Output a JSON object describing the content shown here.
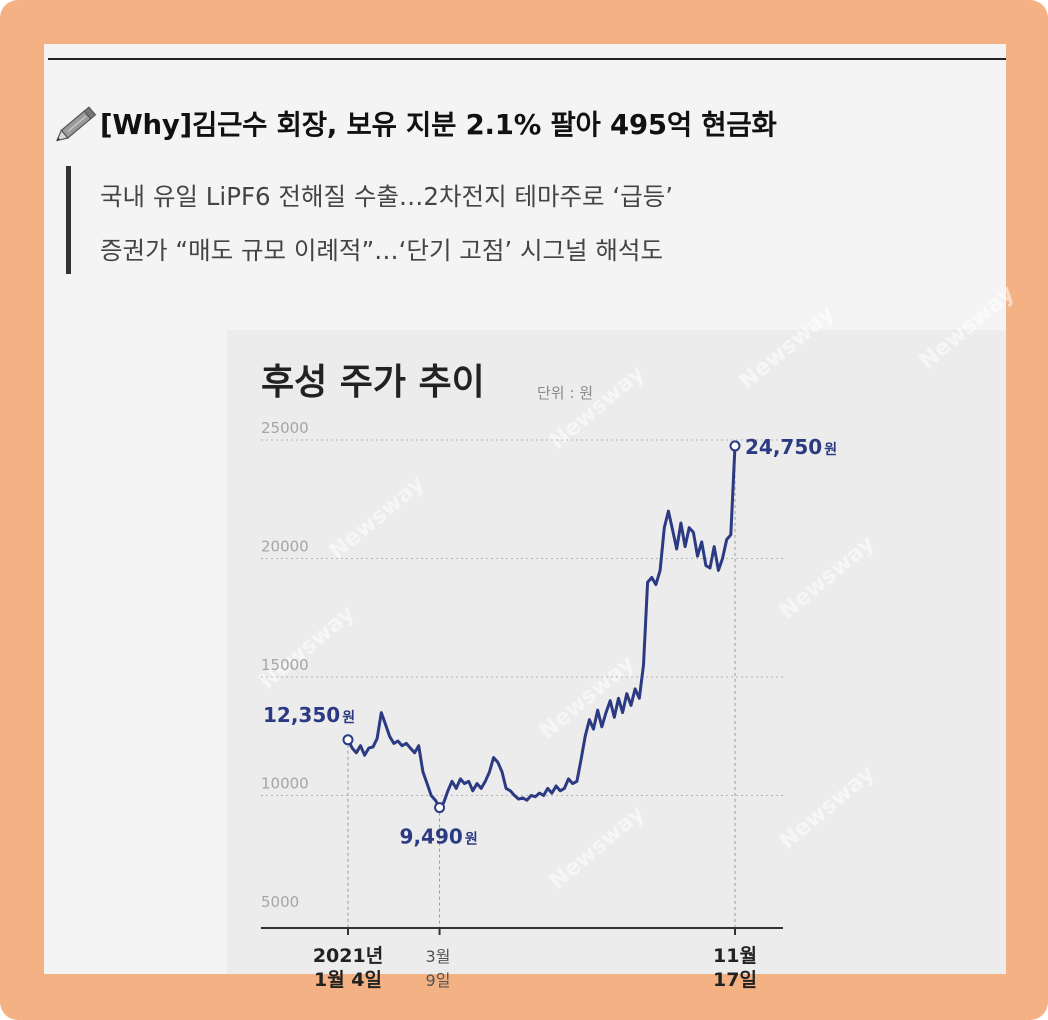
{
  "article": {
    "headline": "[Why]김근수 회장, 보유 지분 2.1% 팔아 495억 현금화",
    "subheads": [
      "국내 유일 LiPF6 전해질 수출…2차전지 테마주로 ‘급등’",
      "증권가 “매도 규모 이례적”…‘단기 고점’ 시그널 해석도"
    ],
    "icon": "pencil-icon"
  },
  "chart_data": {
    "type": "line",
    "title": "후성 주가 추이",
    "unit_label": "단위 : 원",
    "ylim": [
      5000,
      25000
    ],
    "yticks": [
      5000,
      10000,
      15000,
      20000,
      25000
    ],
    "ytick_labels": [
      "5000",
      "10000",
      "15000",
      "20000",
      "25000"
    ],
    "watermark": "Newsway",
    "color": "#2b3a82",
    "series": [
      {
        "values": [
          12350,
          12000,
          11800,
          12100,
          11700,
          12000,
          12050,
          12400,
          13500,
          13000,
          12500,
          12200,
          12300,
          12100,
          12200,
          12000,
          11800,
          12100,
          11000,
          10500,
          10000,
          9800,
          9490,
          9700,
          10200,
          10600,
          10300,
          10700,
          10500,
          10600,
          10200,
          10500,
          10300,
          10600,
          11000,
          11600,
          11400,
          11000,
          10300,
          10200,
          10000,
          9850,
          9900,
          9800,
          10000,
          9950,
          10100,
          10000,
          10300,
          10100,
          10400,
          10200,
          10300,
          10700,
          10500,
          10600,
          11500,
          12500,
          13200,
          12800,
          13600,
          12900,
          13500,
          14000,
          13300,
          14100,
          13500,
          14300,
          13800,
          14500,
          14100,
          15500,
          19000,
          19200,
          18900,
          19500,
          21300,
          22000,
          21200,
          20400,
          21500,
          20500,
          21300,
          21100,
          20100,
          20700,
          19700,
          19600,
          20500,
          19500,
          20000,
          20800,
          21000,
          24750
        ]
      }
    ],
    "annotations": [
      {
        "label": "12,350",
        "unit": "원",
        "value": 12350
      },
      {
        "label": "9,490",
        "unit": "원",
        "value": 9490
      },
      {
        "label": "24,750",
        "unit": "원",
        "value": 24750
      }
    ],
    "x_labels": [
      {
        "line1": "2021년",
        "line2": "1월 4일"
      },
      {
        "line1": "3월",
        "line2": "9일"
      },
      {
        "line1": "11월",
        "line2": "17일"
      }
    ]
  }
}
